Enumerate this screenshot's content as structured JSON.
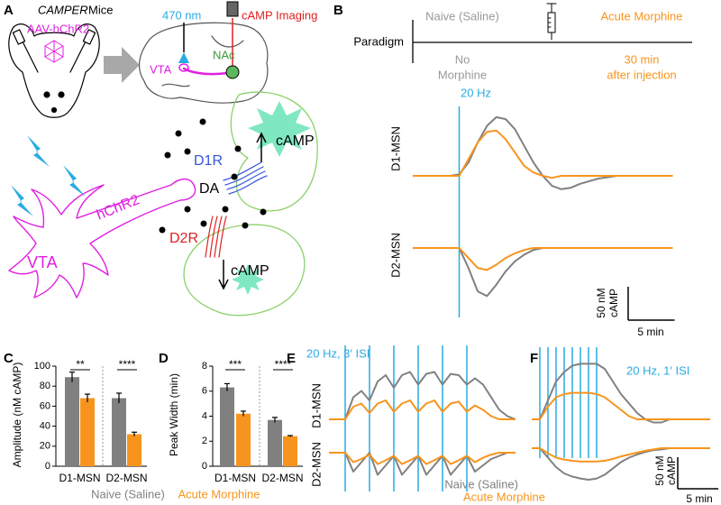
{
  "figure": {
    "panel_labels": [
      "A",
      "B",
      "C",
      "D",
      "E",
      "F"
    ],
    "A": {
      "title_italic": "CAMPER",
      "title_rest": "Mice",
      "virus": "AAV-hChR2",
      "light": "470 nm",
      "imaging": "cAMP Imaging",
      "vta_brain": "VTA",
      "nac": "NAc",
      "d1r": "D1R",
      "camp_up": "cAMP",
      "da": "DA",
      "d2r": "D2R",
      "camp_down": "cAMP",
      "hchr2": "hChR2",
      "vta_neuron": "VTA"
    },
    "B": {
      "paradigm": "Paradigm",
      "naive": "Naive (Saline)",
      "morphine": "Acute Morphine",
      "no_morphine": [
        "No",
        "Morphine"
      ],
      "after": [
        "30 min",
        "after injection"
      ]
    },
    "legend": [
      {
        "name": "Naive (Saline)",
        "color": "#808080"
      },
      {
        "name": "Acute Morphine",
        "color": "#f7941d"
      }
    ]
  },
  "chart_data": [
    {
      "type": "line",
      "annotation": "20 Hz",
      "x": [
        0,
        1,
        2,
        3,
        4,
        5,
        6,
        7,
        8,
        9,
        10,
        11,
        12,
        13,
        14,
        15,
        16,
        17,
        18,
        19,
        20,
        21,
        22,
        23,
        24,
        25,
        26,
        27,
        28
      ],
      "stimuli": [
        5
      ],
      "rows": [
        {
          "label": "D1-MSN",
          "series": [
            {
              "color": "#808080",
              "values": [
                0,
                0,
                0,
                0,
                0,
                2,
                20,
                50,
                75,
                88,
                85,
                70,
                45,
                20,
                0,
                -15,
                -20,
                -18,
                -12,
                -8,
                -4,
                -2,
                0,
                0,
                0,
                0,
                0,
                0,
                0
              ]
            },
            {
              "color": "#f7941d",
              "values": [
                0,
                0,
                0,
                0,
                0,
                0,
                25,
                50,
                66,
                68,
                55,
                35,
                15,
                5,
                0,
                -3,
                0,
                0,
                0,
                0,
                0,
                0,
                0,
                0,
                0,
                0,
                0,
                0,
                0
              ]
            }
          ]
        },
        {
          "label": "D2-MSN",
          "series": [
            {
              "color": "#808080",
              "values": [
                0,
                0,
                0,
                0,
                0,
                0,
                -30,
                -65,
                -72,
                -55,
                -35,
                -20,
                -10,
                -3,
                0,
                0,
                0,
                0,
                0,
                0,
                0,
                0,
                0,
                0,
                0,
                0,
                0,
                0,
                0
              ]
            },
            {
              "color": "#f7941d",
              "values": [
                0,
                0,
                0,
                0,
                0,
                0,
                -15,
                -30,
                -33,
                -25,
                -15,
                -8,
                -3,
                0,
                0,
                0,
                0,
                0,
                0,
                0,
                0,
                0,
                0,
                0,
                0,
                0,
                0,
                0,
                0
              ]
            }
          ]
        }
      ],
      "scalebar": {
        "x": 5,
        "x_label": "5 min",
        "y": 50,
        "y_label": [
          "50 nM",
          "cAMP"
        ]
      }
    },
    {
      "type": "bar",
      "ylabel": "Amplitude (nM cAMP)",
      "categories": [
        "D1-MSN",
        "D2-MSN"
      ],
      "series": [
        {
          "color": "#808080",
          "values": [
            89,
            68
          ],
          "errors": [
            5,
            5
          ]
        },
        {
          "color": "#f7941d",
          "values": [
            68,
            32
          ],
          "errors": [
            4,
            2
          ]
        }
      ],
      "significance": [
        "**",
        "****"
      ],
      "ylim": [
        0,
        100
      ],
      "yticks": [
        0,
        20,
        40,
        60,
        80,
        100
      ]
    },
    {
      "type": "bar",
      "ylabel": "Peak Width (min)",
      "categories": [
        "D1-MSN",
        "D2-MSN"
      ],
      "series": [
        {
          "color": "#808080",
          "values": [
            6.3,
            3.7
          ],
          "errors": [
            0.3,
            0.2
          ]
        },
        {
          "color": "#f7941d",
          "values": [
            4.2,
            2.4
          ],
          "errors": [
            0.2,
            0.05
          ]
        }
      ],
      "significance": [
        "***",
        "****"
      ],
      "ylim": [
        0,
        8
      ],
      "yticks": [
        0,
        2,
        4,
        6,
        8
      ]
    },
    {
      "type": "line",
      "annotation": "20 Hz, 3′ ISI",
      "x": [
        0,
        1,
        2,
        3,
        4,
        5,
        6,
        7,
        8,
        9,
        10,
        11,
        12,
        13,
        14,
        15,
        16,
        17,
        18,
        19,
        20,
        21,
        22,
        23
      ],
      "stimuli": [
        2,
        5,
        8,
        11,
        14,
        17
      ],
      "rows": [
        {
          "label": "D1-MSN",
          "series": [
            {
              "color": "#808080",
              "values": [
                0,
                0,
                0,
                35,
                45,
                30,
                60,
                70,
                50,
                70,
                75,
                55,
                72,
                75,
                55,
                72,
                70,
                55,
                65,
                55,
                35,
                15,
                5,
                0
              ]
            },
            {
              "color": "#f7941d",
              "values": [
                0,
                0,
                0,
                20,
                25,
                10,
                25,
                30,
                12,
                25,
                30,
                12,
                25,
                30,
                12,
                25,
                28,
                12,
                22,
                15,
                5,
                0,
                0,
                0
              ]
            }
          ]
        },
        {
          "label": "D2-MSN",
          "series": [
            {
              "color": "#808080",
              "values": [
                0,
                0,
                0,
                -30,
                -15,
                0,
                -35,
                -20,
                -5,
                -35,
                -20,
                -5,
                -35,
                -20,
                -5,
                -35,
                -20,
                -5,
                -30,
                -20,
                -10,
                -5,
                0,
                0
              ]
            },
            {
              "color": "#f7941d",
              "values": [
                0,
                0,
                0,
                -15,
                -10,
                -3,
                -18,
                -12,
                -5,
                -18,
                -12,
                -5,
                -18,
                -12,
                -5,
                -18,
                -12,
                -5,
                -15,
                -8,
                -3,
                0,
                0,
                0
              ]
            }
          ]
        }
      ]
    },
    {
      "type": "line",
      "annotation": "20 Hz, 1′ ISI",
      "x": [
        0,
        1,
        2,
        3,
        4,
        5,
        6,
        7,
        8,
        9,
        10,
        11,
        12,
        13,
        14,
        15,
        16,
        17,
        18,
        19,
        20,
        21,
        22
      ],
      "stimuli": [
        1,
        2,
        3,
        4,
        5,
        6,
        7,
        8
      ],
      "rows": [
        {
          "series": [
            {
              "color": "#808080",
              "values": [
                0,
                0,
                30,
                60,
                75,
                85,
                88,
                88,
                88,
                80,
                60,
                40,
                25,
                10,
                0,
                -5,
                -5,
                0,
                0,
                0,
                0,
                0,
                0
              ]
            },
            {
              "color": "#f7941d",
              "values": [
                0,
                0,
                20,
                35,
                40,
                42,
                42,
                42,
                40,
                35,
                25,
                15,
                5,
                0,
                0,
                0,
                0,
                0,
                0,
                0,
                0,
                0,
                0
              ]
            }
          ]
        },
        {
          "series": [
            {
              "color": "#808080",
              "values": [
                0,
                0,
                -15,
                -30,
                -40,
                -45,
                -48,
                -50,
                -48,
                -42,
                -32,
                -22,
                -15,
                -10,
                -6,
                -3,
                -2,
                0,
                0,
                0,
                0,
                0,
                0
              ]
            },
            {
              "color": "#f7941d",
              "values": [
                0,
                0,
                -8,
                -15,
                -18,
                -20,
                -21,
                -21,
                -21,
                -20,
                -17,
                -13,
                -10,
                -7,
                -4,
                -2,
                0,
                0,
                0,
                0,
                0,
                0,
                0
              ]
            }
          ]
        }
      ],
      "scalebar": {
        "x": 5,
        "x_label": "5 min",
        "y": 50,
        "y_label": [
          "50 nM",
          "cAMP"
        ]
      }
    }
  ]
}
